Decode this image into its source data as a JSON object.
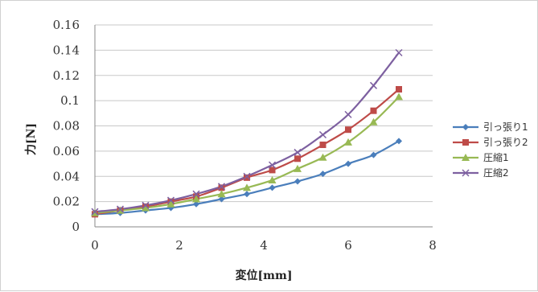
{
  "chart_data": {
    "type": "line",
    "title": "",
    "xlabel": "変位[mm]",
    "ylabel": "力[N]",
    "xlim": [
      0,
      8
    ],
    "ylim": [
      0,
      0.16
    ],
    "xticks": [
      "0",
      "2",
      "4",
      "6",
      "8"
    ],
    "yticks": [
      "0",
      "0.02",
      "0.04",
      "0.06",
      "0.08",
      "0.1",
      "0.12",
      "0.14",
      "0.16"
    ],
    "grid": true,
    "legend": "right",
    "x": [
      0,
      0.6,
      1.2,
      1.8,
      2.4,
      3.0,
      3.6,
      4.2,
      4.8,
      5.4,
      6.0,
      6.6,
      7.2
    ],
    "series": [
      {
        "name": "引っ張り1",
        "marker": "diamond",
        "color": "#4a7ebb",
        "values": [
          0.01,
          0.011,
          0.013,
          0.015,
          0.018,
          0.022,
          0.026,
          0.031,
          0.036,
          0.042,
          0.05,
          0.057,
          0.068
        ]
      },
      {
        "name": "引っ張り2",
        "marker": "square",
        "color": "#be4b48",
        "values": [
          0.01,
          0.013,
          0.016,
          0.02,
          0.024,
          0.031,
          0.039,
          0.045,
          0.054,
          0.065,
          0.077,
          0.092,
          0.109
        ]
      },
      {
        "name": "圧縮1",
        "marker": "triangle",
        "color": "#98b954",
        "values": [
          0.011,
          0.013,
          0.015,
          0.018,
          0.022,
          0.026,
          0.031,
          0.037,
          0.046,
          0.055,
          0.067,
          0.083,
          0.103
        ]
      },
      {
        "name": "圧縮2",
        "marker": "x",
        "color": "#7d60a0",
        "values": [
          0.012,
          0.014,
          0.017,
          0.021,
          0.026,
          0.032,
          0.04,
          0.049,
          0.059,
          0.073,
          0.089,
          0.112,
          0.138
        ]
      }
    ]
  }
}
